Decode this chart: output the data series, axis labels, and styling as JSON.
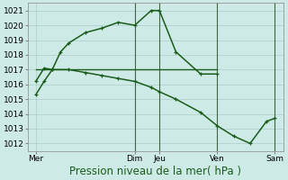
{
  "background_color": "#cdeae6",
  "grid_color": "#aaccc8",
  "line_color": "#1a5c1a",
  "marker_color": "#1a5c1a",
  "ylabel_ticks": [
    1012,
    1013,
    1014,
    1015,
    1016,
    1017,
    1018,
    1019,
    1020,
    1021
  ],
  "ylim": [
    1011.5,
    1021.5
  ],
  "xlabel": "Pression niveau de la mer( hPa )",
  "xtick_labels": [
    "Mer",
    "Dim",
    "Jeu",
    "Ven",
    "Sam"
  ],
  "xtick_positions": [
    0,
    6,
    7.5,
    11,
    14.5
  ],
  "xlim": [
    -0.5,
    15.0
  ],
  "series1_x": [
    0,
    0.5,
    1,
    1.5,
    2,
    3,
    4,
    5,
    6,
    7,
    7.5,
    8.5,
    10,
    11
  ],
  "series1_y": [
    1016.2,
    1017.1,
    1017.0,
    1018.2,
    1018.8,
    1019.5,
    1019.8,
    1020.2,
    1020.0,
    1021.0,
    1021.0,
    1018.2,
    1016.7,
    1016.7
  ],
  "series2_x": [
    0,
    0.5,
    1,
    2,
    3,
    4,
    5,
    6,
    7,
    7.5,
    8.5,
    10,
    11,
    12,
    13,
    14,
    14.5
  ],
  "series2_y": [
    1015.3,
    1016.2,
    1017.0,
    1017.0,
    1016.8,
    1016.6,
    1016.4,
    1016.2,
    1015.8,
    1015.5,
    1015.0,
    1014.1,
    1013.2,
    1012.5,
    1012.0,
    1013.5,
    1013.7
  ],
  "series3_x": [
    0,
    11
  ],
  "series3_y": [
    1017.0,
    1017.0
  ],
  "vline_x": [
    6,
    7.5,
    11,
    14.5
  ],
  "tick_fontsize": 6.5,
  "xlabel_fontsize": 8.5,
  "xlabel_color": "#1a5c1a"
}
